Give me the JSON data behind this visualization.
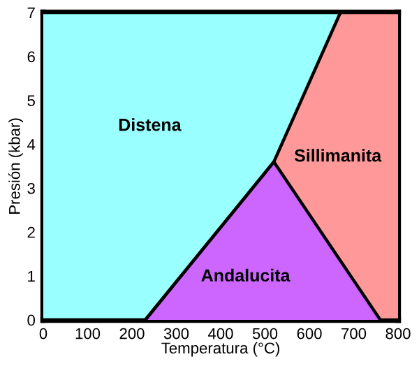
{
  "chart_data": {
    "type": "area",
    "stacked": true,
    "xlabel": "Temperatura (°C)",
    "ylabel": "Presión (kbar)",
    "xlim": [
      0,
      800
    ],
    "ylim": [
      0,
      7
    ],
    "xticks": [
      0,
      100,
      200,
      300,
      400,
      500,
      600,
      700,
      800
    ],
    "yticks": [
      0,
      1,
      2,
      3,
      4,
      5,
      6,
      7
    ],
    "x": [
      0,
      230,
      520,
      670,
      760,
      800
    ],
    "series": [
      {
        "color": "#cc66ff",
        "values": [
          0,
          0,
          3.6,
          1.35,
          0,
          0
        ]
      },
      {
        "color": "#ff9999",
        "values": [
          0,
          0,
          0,
          5.65,
          7,
          7
        ]
      },
      {
        "color": "#99ffff",
        "values": [
          7,
          7,
          3.4,
          0,
          null,
          null
        ]
      }
    ],
    "annotations": [
      "Distena",
      "Sillimanita",
      "Andalucita"
    ]
  }
}
